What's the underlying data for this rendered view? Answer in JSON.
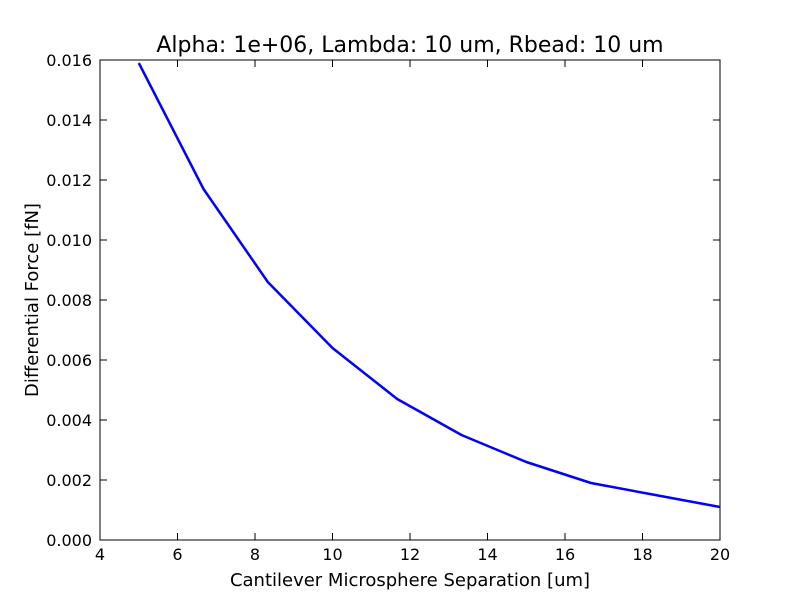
{
  "chart_data": {
    "type": "line",
    "title": "Alpha: 1e+06, Lambda: 10 um, Rbead: 10 um",
    "xlabel": "Cantilever Microsphere Separation [um]",
    "ylabel": "Differential Force [fN]",
    "xlim": [
      4,
      20
    ],
    "ylim": [
      0.0,
      0.016
    ],
    "xticks": [
      4,
      6,
      8,
      10,
      12,
      14,
      16,
      18,
      20
    ],
    "xtick_labels": [
      "4",
      "6",
      "8",
      "10",
      "12",
      "14",
      "16",
      "18",
      "20"
    ],
    "yticks": [
      0.0,
      0.002,
      0.004,
      0.006,
      0.008,
      0.01,
      0.012,
      0.014,
      0.016
    ],
    "ytick_labels": [
      "0.000",
      "0.002",
      "0.004",
      "0.006",
      "0.008",
      "0.010",
      "0.012",
      "0.014",
      "0.016"
    ],
    "grid": false,
    "legend": "none",
    "series": [
      {
        "color": "#0000ff",
        "x": [
          5.0,
          6.67,
          8.33,
          10.0,
          11.67,
          13.33,
          15.0,
          16.67,
          18.33,
          20.0
        ],
        "y": [
          0.0159,
          0.0117,
          0.0086,
          0.0064,
          0.0047,
          0.0035,
          0.0026,
          0.0019,
          0.0015,
          0.0011
        ]
      }
    ]
  }
}
